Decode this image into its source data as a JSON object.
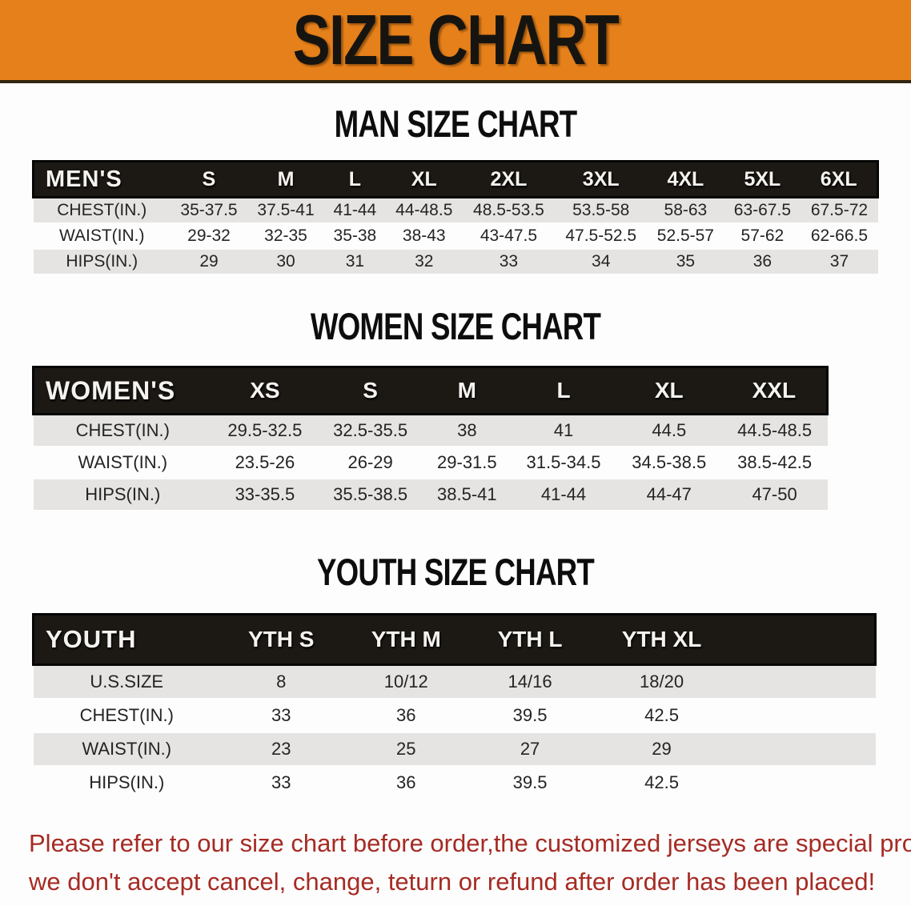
{
  "banner": {
    "title": "SIZE CHART"
  },
  "colors": {
    "banner_bg": "#e6801a",
    "banner_border": "#33250f",
    "header_bg": "#1c1814",
    "header_border": "#060606",
    "stripe_gray": "#e5e4e2",
    "note_red": "#a62b24"
  },
  "sections": [
    {
      "id": "men",
      "heading": "MAN SIZE CHART",
      "table": {
        "label": "MEN'S",
        "columns": [
          "S",
          "M",
          "L",
          "XL",
          "2XL",
          "3XL",
          "4XL",
          "5XL",
          "6XL"
        ],
        "trailing_blank_column": false,
        "rows": [
          {
            "label": "CHEST(IN.)",
            "values": [
              "35-37.5",
              "37.5-41",
              "41-44",
              "44-48.5",
              "48.5-53.5",
              "53.5-58",
              "58-63",
              "63-67.5",
              "67.5-72"
            ]
          },
          {
            "label": "WAIST(IN.)",
            "values": [
              "29-32",
              "32-35",
              "35-38",
              "38-43",
              "43-47.5",
              "47.5-52.5",
              "52.5-57",
              "57-62",
              "62-66.5"
            ]
          },
          {
            "label": "HIPS(IN.)",
            "values": [
              "29",
              "30",
              "31",
              "32",
              "33",
              "34",
              "35",
              "36",
              "37"
            ]
          }
        ]
      }
    },
    {
      "id": "women",
      "heading": "WOMEN SIZE CHART",
      "table": {
        "label": "WOMEN'S",
        "columns": [
          "XS",
          "S",
          "M",
          "L",
          "XL",
          "XXL"
        ],
        "trailing_blank_column": false,
        "rows": [
          {
            "label": "CHEST(IN.)",
            "values": [
              "29.5-32.5",
              "32.5-35.5",
              "38",
              "41",
              "44.5",
              "44.5-48.5"
            ]
          },
          {
            "label": "WAIST(IN.)",
            "values": [
              "23.5-26",
              "26-29",
              "29-31.5",
              "31.5-34.5",
              "34.5-38.5",
              "38.5-42.5"
            ]
          },
          {
            "label": "HIPS(IN.)",
            "values": [
              "33-35.5",
              "35.5-38.5",
              "38.5-41",
              "41-44",
              "44-47",
              "47-50"
            ]
          }
        ]
      }
    },
    {
      "id": "youth",
      "heading": "YOUTH SIZE CHART",
      "table": {
        "label": "YOUTH",
        "columns": [
          "YTH S",
          "YTH M",
          "YTH L",
          "YTH XL"
        ],
        "trailing_blank_column": true,
        "rows": [
          {
            "label": "U.S.SIZE",
            "values": [
              "8",
              "10/12",
              "14/16",
              "18/20"
            ]
          },
          {
            "label": "CHEST(IN.)",
            "values": [
              "33",
              "36",
              "39.5",
              "42.5"
            ]
          },
          {
            "label": "WAIST(IN.)",
            "values": [
              "23",
              "25",
              "27",
              "29"
            ]
          },
          {
            "label": "HIPS(IN.)",
            "values": [
              "33",
              "36",
              "39.5",
              "42.5"
            ]
          }
        ]
      }
    }
  ],
  "note": {
    "lines": [
      "Please refer to our size chart before order,the customized jerseys are special products,",
      "we don't accept cancel, change, teturn or refund after order has been placed!"
    ]
  }
}
